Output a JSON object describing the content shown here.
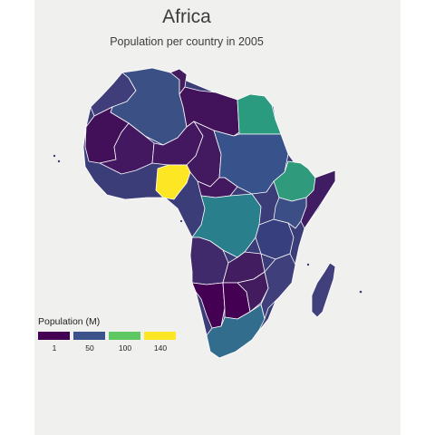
{
  "title": "Africa",
  "subtitle": "Population per country in 2005",
  "legend": {
    "title": "Population (M)",
    "stops": [
      {
        "label": "1",
        "color": "#440154"
      },
      {
        "label": "50",
        "color": "#3b528b"
      },
      {
        "label": "100",
        "color": "#5ec962"
      },
      {
        "label": "140",
        "color": "#fde725"
      }
    ]
  },
  "colors": {
    "panel": "#f0f0ef",
    "border": "#ffffff"
  },
  "countries": [
    {
      "name": "Morocco",
      "color": "#3f3d7a"
    },
    {
      "name": "Algeria",
      "color": "#3b5186"
    },
    {
      "name": "Tunisia",
      "color": "#431c5e"
    },
    {
      "name": "Libya",
      "color": "#42135a"
    },
    {
      "name": "Egypt",
      "color": "#2a9b7f"
    },
    {
      "name": "Mauritania",
      "color": "#421058"
    },
    {
      "name": "Mali",
      "color": "#431860"
    },
    {
      "name": "Niger",
      "color": "#431860"
    },
    {
      "name": "Chad",
      "color": "#431a60"
    },
    {
      "name": "Sudan",
      "color": "#38538b"
    },
    {
      "name": "Nigeria",
      "color": "#fde725"
    },
    {
      "name": "Ethiopia",
      "color": "#2f9a7c"
    },
    {
      "name": "DR Congo",
      "color": "#2a7f8c"
    },
    {
      "name": "South Africa",
      "color": "#336d8d"
    },
    {
      "name": "Madagascar",
      "color": "#413f7c"
    }
  ]
}
